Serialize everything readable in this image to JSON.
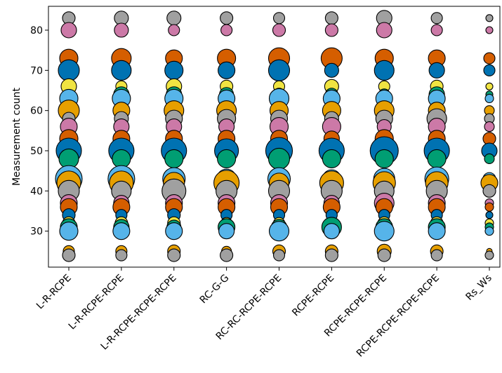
{
  "chart_data": {
    "type": "scatter",
    "title": "",
    "xlabel": "",
    "ylabel": "Measurement count",
    "ylim": [
      21,
      86
    ],
    "yticks": [
      30,
      40,
      50,
      60,
      70,
      80
    ],
    "grid": false,
    "categories": [
      "L-R-RCPE",
      "L-R-RCPE-RCPE",
      "L-R-RCPE-RCPE-RCPE",
      "RC-G-G",
      "RC-RC-RCPE-RCPE",
      "RCPE-RCPE",
      "RCPE-RCPE-RCPE",
      "RCPE-RCPE-RCPE-RCPE",
      "Rs_Ws"
    ],
    "marker_colors": {
      "gray": "#a0a0a0",
      "pink": "#cc79a7",
      "orange": "#d55e00",
      "blue": "#0072b2",
      "yellow": "#f0e442",
      "skyblue": "#56b4e9",
      "amber": "#e69f00",
      "green": "#009e73"
    },
    "y_levels": [
      {
        "y": 83,
        "color": "gray"
      },
      {
        "y": 80,
        "color": "pink"
      },
      {
        "y": 73,
        "color": "orange"
      },
      {
        "y": 70,
        "color": "blue"
      },
      {
        "y": 66,
        "color": "yellow"
      },
      {
        "y": 64,
        "color": "green"
      },
      {
        "y": 63,
        "color": "skyblue"
      },
      {
        "y": 60,
        "color": "amber"
      },
      {
        "y": 58,
        "color": "gray"
      },
      {
        "y": 56,
        "color": "pink"
      },
      {
        "y": 53,
        "color": "orange"
      },
      {
        "y": 50,
        "color": "blue"
      },
      {
        "y": 48,
        "color": "green"
      },
      {
        "y": 43,
        "color": "skyblue"
      },
      {
        "y": 42,
        "color": "amber"
      },
      {
        "y": 40,
        "color": "gray"
      },
      {
        "y": 37,
        "color": "pink"
      },
      {
        "y": 36,
        "color": "orange"
      },
      {
        "y": 34,
        "color": "blue"
      },
      {
        "y": 32,
        "color": "yellow"
      },
      {
        "y": 31,
        "color": "green"
      },
      {
        "y": 30,
        "color": "skyblue"
      },
      {
        "y": 25,
        "color": "amber"
      },
      {
        "y": 24,
        "color": "gray"
      }
    ],
    "sizes_by_category": [
      [
        9,
        11,
        13,
        15,
        11,
        7,
        13,
        15,
        9,
        12,
        13,
        18,
        14,
        19,
        17,
        15,
        12,
        12,
        9,
        9,
        12,
        13,
        8,
        9
      ],
      [
        10,
        10,
        14,
        14,
        8,
        11,
        13,
        12,
        10,
        11,
        12,
        18,
        13,
        19,
        17,
        14,
        11,
        12,
        8,
        9,
        11,
        12,
        8,
        8
      ],
      [
        10,
        8,
        12,
        13,
        11,
        11,
        13,
        14,
        12,
        11,
        12,
        18,
        13,
        16,
        15,
        17,
        12,
        12,
        9,
        9,
        10,
        12,
        9,
        9
      ],
      [
        9,
        8,
        13,
        12,
        9,
        10,
        12,
        14,
        13,
        11,
        12,
        17,
        13,
        14,
        18,
        15,
        12,
        12,
        8,
        8,
        12,
        11,
        7,
        9
      ],
      [
        8,
        9,
        15,
        15,
        8,
        9,
        14,
        13,
        12,
        13,
        12,
        19,
        15,
        16,
        14,
        15,
        12,
        12,
        8,
        8,
        11,
        14,
        9,
        8
      ],
      [
        9,
        9,
        15,
        10,
        10,
        9,
        12,
        13,
        10,
        13,
        11,
        18,
        13,
        13,
        17,
        15,
        11,
        12,
        8,
        8,
        14,
        11,
        9,
        9
      ],
      [
        11,
        11,
        13,
        14,
        8,
        8,
        12,
        14,
        12,
        10,
        13,
        20,
        13,
        15,
        16,
        14,
        14,
        12,
        8,
        9,
        12,
        14,
        10,
        9
      ],
      [
        8,
        8,
        12,
        11,
        9,
        11,
        12,
        12,
        14,
        12,
        12,
        18,
        13,
        17,
        16,
        15,
        12,
        12,
        8,
        9,
        12,
        12,
        9,
        8
      ],
      [
        5,
        5,
        8,
        8,
        5,
        5,
        6,
        7,
        7,
        7,
        9,
        11,
        7,
        9,
        12,
        9,
        6,
        6,
        5,
        6,
        6,
        6,
        4,
        6
      ]
    ]
  }
}
